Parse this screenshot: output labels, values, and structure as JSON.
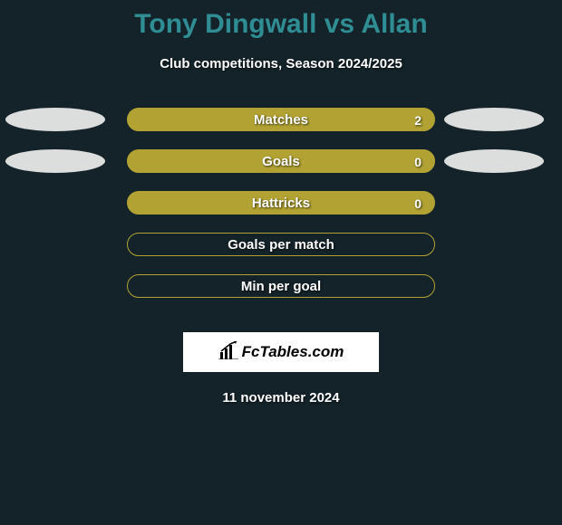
{
  "background_color": "#142329",
  "title": "Tony Dingwall vs Allan",
  "title_color": "#2f8e94",
  "title_fontsize": 30,
  "subtitle": "Club competitions, Season 2024/2025",
  "subtitle_color": "#ffffff",
  "ellipse_color": "#dcdddd",
  "bar_fill_color": "#b1a233",
  "bar_border_color": "#b1a233",
  "rows": [
    {
      "label": "Matches",
      "right_value": "2",
      "filled": true,
      "show_left_ellipse": true,
      "show_right_ellipse": true
    },
    {
      "label": "Goals",
      "right_value": "0",
      "filled": true,
      "show_left_ellipse": true,
      "show_right_ellipse": true
    },
    {
      "label": "Hattricks",
      "right_value": "0",
      "filled": true,
      "show_left_ellipse": false,
      "show_right_ellipse": false
    },
    {
      "label": "Goals per match",
      "right_value": "",
      "filled": false,
      "show_left_ellipse": false,
      "show_right_ellipse": false
    },
    {
      "label": "Min per goal",
      "right_value": "",
      "filled": false,
      "show_left_ellipse": false,
      "show_right_ellipse": false
    }
  ],
  "brand": "FcTables.com",
  "date": "11 november 2024"
}
